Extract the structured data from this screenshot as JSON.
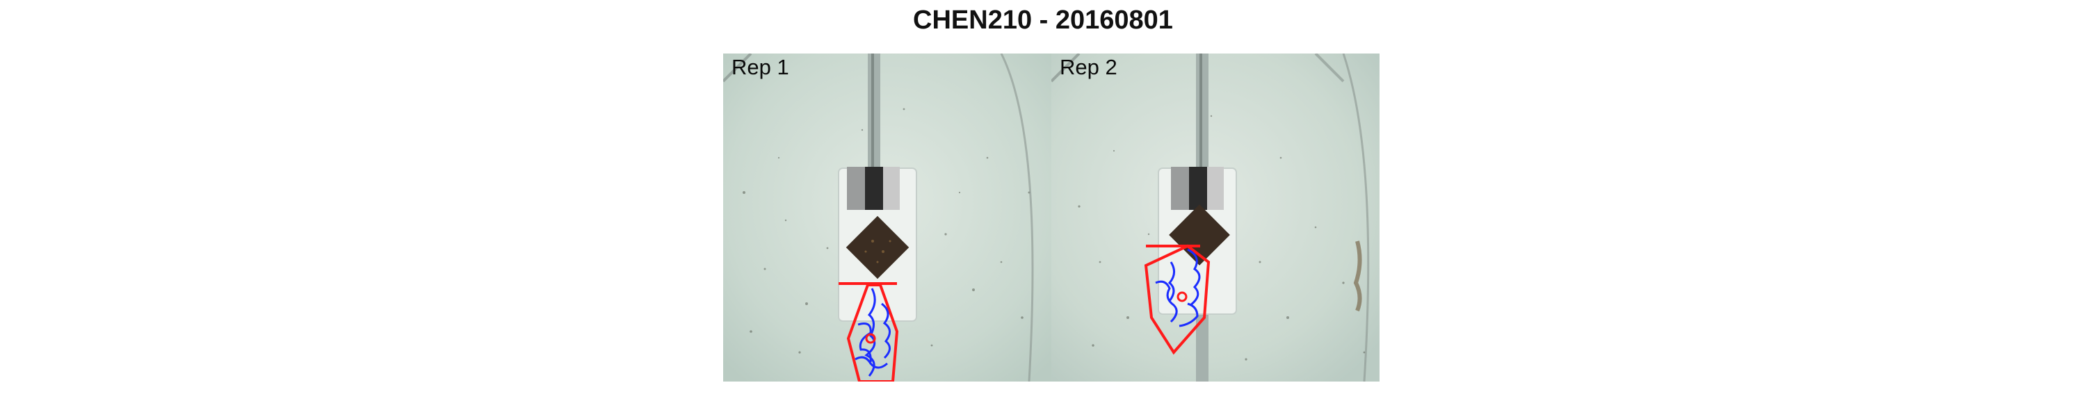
{
  "figure": {
    "title": "CHEN210 - 20160801",
    "panels": [
      {
        "label": "Rep 1"
      },
      {
        "label": "Rep 2"
      }
    ]
  },
  "colors": {
    "soil_bg": "#cfdcd3",
    "rail": "#9aa7a3",
    "plate": "#eef2ef",
    "seed_square": "#3b2d22",
    "outline_red": "#ff1a1a",
    "outline_blue": "#1b2dff"
  }
}
